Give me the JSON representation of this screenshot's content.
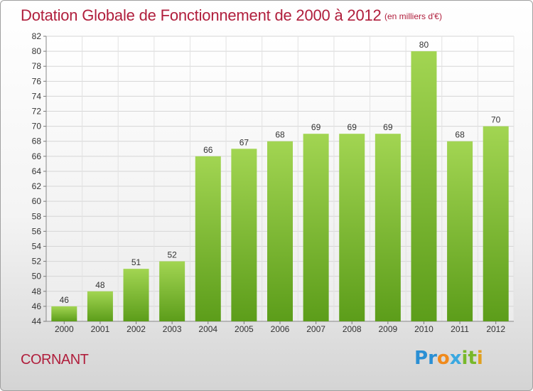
{
  "header": {
    "title": "Dotation Globale de Fonctionnement de 2000 à 2012",
    "subtitle": "(en milliers d'€)"
  },
  "footer": {
    "town": "CORNANT",
    "logo_text": "Proxiti"
  },
  "logo_letters": [
    {
      "char": "P",
      "color": "#2a8fd4"
    },
    {
      "char": "r",
      "color": "#2a8fd4"
    },
    {
      "char": "o",
      "color": "#f08a1c"
    },
    {
      "char": "x",
      "color": "#3aa8e0"
    },
    {
      "char": "i",
      "color": "#78b82a"
    },
    {
      "char": "t",
      "color": "#78b82a"
    },
    {
      "char": "i",
      "color": "#e0a020"
    }
  ],
  "colors": {
    "accent": "#b01e3c",
    "bar_light": "#a2d552",
    "bar_dark": "#5c9d1a"
  },
  "chart_data": {
    "type": "bar",
    "title": "Dotation Globale de Fonctionnement de 2000 à 2012",
    "subtitle": "(en milliers d'€)",
    "categories": [
      "2000",
      "2001",
      "2002",
      "2003",
      "2004",
      "2005",
      "2006",
      "2007",
      "2008",
      "2009",
      "2010",
      "2011",
      "2012"
    ],
    "values": [
      46,
      48,
      51,
      52,
      66,
      67,
      68,
      69,
      69,
      69,
      80,
      68,
      70
    ],
    "ylim": [
      44,
      82
    ],
    "ytick_step": 2,
    "grid": true,
    "xlabel": "",
    "ylabel": ""
  }
}
